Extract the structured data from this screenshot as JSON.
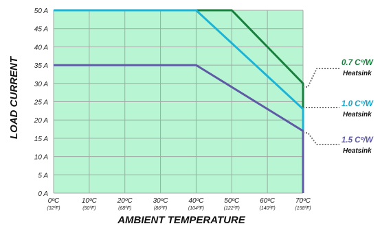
{
  "chart_data": {
    "type": "line",
    "xlabel": "AMBIENT TEMPERATURE",
    "ylabel": "LOAD CURRENT",
    "x_ticks": [
      {
        "value": 0,
        "label": "0ºC",
        "sub": "(32ºF)"
      },
      {
        "value": 10,
        "label": "10ºC",
        "sub": "(50ºF)"
      },
      {
        "value": 20,
        "label": "20ºC",
        "sub": "(68ºF)"
      },
      {
        "value": 30,
        "label": "30ºC",
        "sub": "(86ºF)"
      },
      {
        "value": 40,
        "label": "40ºC",
        "sub": "(104ºF)"
      },
      {
        "value": 50,
        "label": "50ºC",
        "sub": "(122ºF)"
      },
      {
        "value": 60,
        "label": "60ºC",
        "sub": "(140ºF)"
      },
      {
        "value": 70,
        "label": "70ºC",
        "sub": "(158ºF)"
      }
    ],
    "y_ticks": [
      {
        "value": 0,
        "label": "0 A"
      },
      {
        "value": 5,
        "label": "5 A"
      },
      {
        "value": 10,
        "label": "10 A"
      },
      {
        "value": 15,
        "label": "15 A"
      },
      {
        "value": 20,
        "label": "20 A"
      },
      {
        "value": 25,
        "label": "25 A"
      },
      {
        "value": 30,
        "label": "30 A"
      },
      {
        "value": 35,
        "label": "35 A"
      },
      {
        "value": 40,
        "label": "40 A"
      },
      {
        "value": 45,
        "label": "45 A"
      },
      {
        "value": 50,
        "label": "50 A"
      }
    ],
    "xlim": [
      0,
      70
    ],
    "ylim": [
      0,
      50
    ],
    "grid": true,
    "fill_color": "#b7f5d3",
    "grid_color": "#a6a6a6",
    "series": [
      {
        "name": "0.7 Cº/W",
        "label2": "Heatsink",
        "color": "#17803c",
        "label_color": "#17803c",
        "x": [
          0,
          50,
          70,
          70
        ],
        "y": [
          50,
          50,
          30,
          0
        ]
      },
      {
        "name": "1.0 Cº/W",
        "label2": "Heatsink",
        "color": "#1bb3d6",
        "label_color": "#16a3c6",
        "x": [
          0,
          40,
          70,
          70
        ],
        "y": [
          50,
          50,
          23,
          0
        ]
      },
      {
        "name": "1.5 Cº/W",
        "label2": "Heatsink",
        "color": "#5e5aa6",
        "label_color": "#5e5aa6",
        "x": [
          0,
          40,
          70,
          70
        ],
        "y": [
          35,
          35,
          17,
          0
        ]
      }
    ]
  }
}
